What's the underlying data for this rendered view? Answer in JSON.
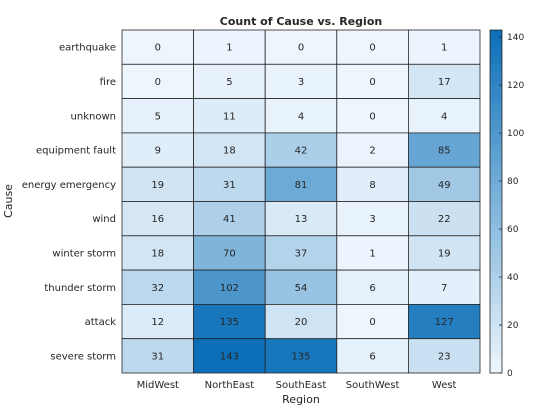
{
  "chart_data": {
    "type": "heatmap",
    "title": "Count of Cause vs. Region",
    "xlabel": "Region",
    "ylabel": "Cause",
    "x_categories": [
      "MidWest",
      "NorthEast",
      "SouthEast",
      "SouthWest",
      "West"
    ],
    "y_categories": [
      "earthquake",
      "fire",
      "unknown",
      "equipment fault",
      "energy emergency",
      "wind",
      "winter storm",
      "thunder storm",
      "attack",
      "severe storm"
    ],
    "values": [
      [
        0,
        1,
        0,
        0,
        1
      ],
      [
        0,
        5,
        3,
        0,
        17
      ],
      [
        5,
        11,
        4,
        0,
        4
      ],
      [
        9,
        18,
        42,
        2,
        85
      ],
      [
        19,
        31,
        81,
        8,
        49
      ],
      [
        16,
        41,
        13,
        3,
        22
      ],
      [
        18,
        70,
        37,
        1,
        19
      ],
      [
        32,
        102,
        54,
        6,
        7
      ],
      [
        12,
        135,
        20,
        0,
        127
      ],
      [
        31,
        143,
        135,
        6,
        23
      ]
    ],
    "color_min": 0,
    "color_max": 143,
    "colorbar_ticks": [
      0,
      20,
      40,
      60,
      80,
      100,
      120,
      140
    ],
    "colors": {
      "low": "#eef6fd",
      "high": "#0b6fb8",
      "grid": "#262626"
    },
    "colorbar_position": "right"
  }
}
